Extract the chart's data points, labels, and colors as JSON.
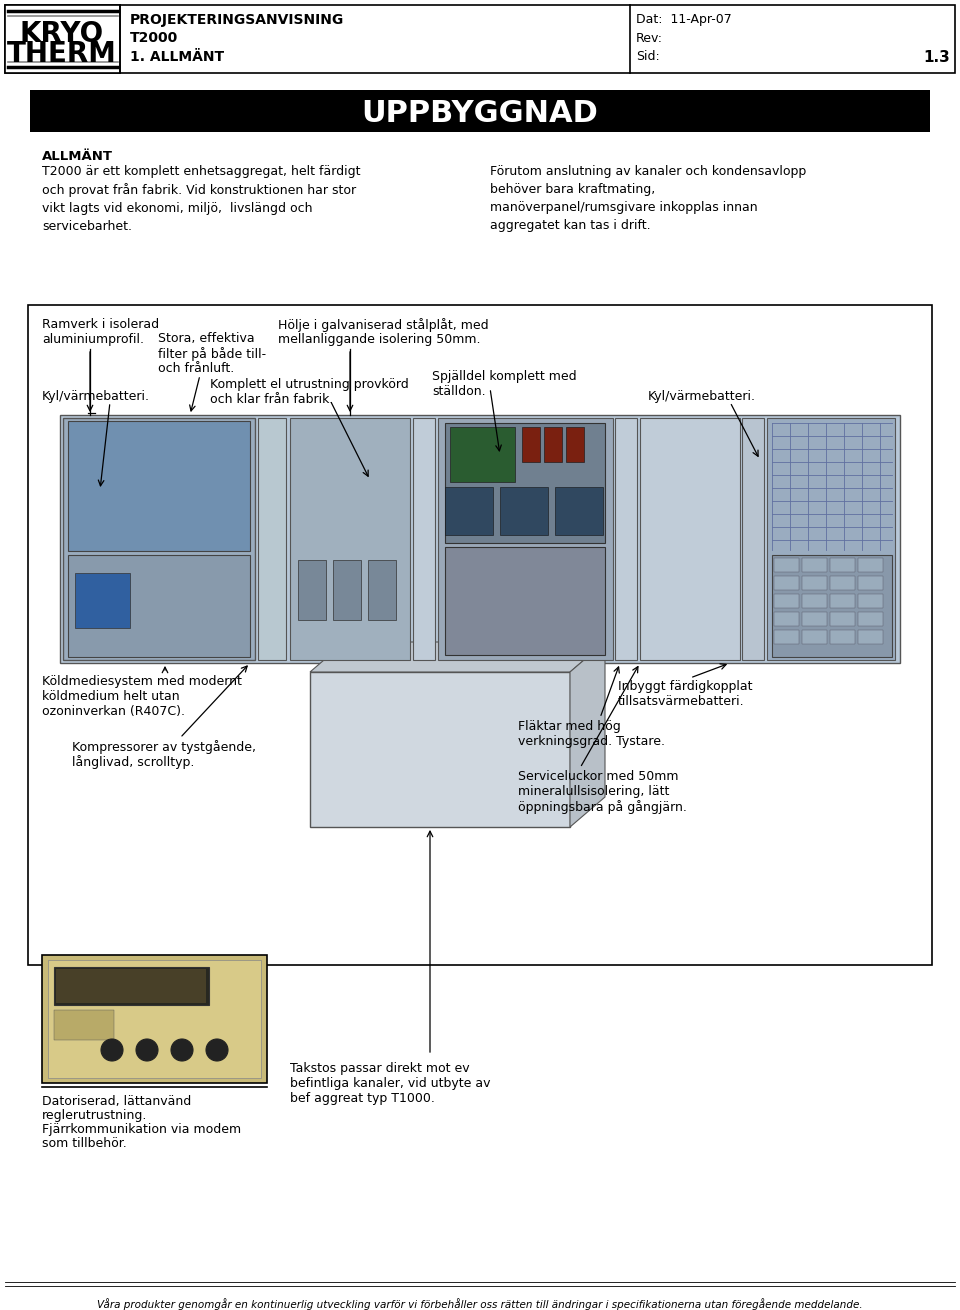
{
  "page_width": 9.6,
  "page_height": 13.1,
  "bg_color": "#ffffff",
  "header": {
    "logo_text_line1": "KRYO",
    "logo_text_line2": "THERM",
    "title_line1": "PROJEKTERINGSANVISNING",
    "title_line2": "T2000",
    "title_line3": "1. ALLMÄNT",
    "date_label": "Dat:",
    "date_value": "11-Apr-07",
    "rev_label": "Rev:",
    "rev_value": "",
    "sid_label": "Sid:",
    "sid_value": "1.3"
  },
  "section_title": "UPPBYGGNAD",
  "allmant_heading": "ALLMÄNT",
  "allmant_text_left": "T2000 är ett komplett enhetsaggregat, helt färdigt\noch provat från fabrik. Vid konstruktionen har stor\nvikt lagts vid ekonomi, miljö,  livslängd och\nservicebarhet.",
  "allmant_text_right": "Förutom anslutning av kanaler och kondensavlopp\nbehöver bara kraftmating,\nmanöverpanel/rumsgivare inkopplas innan\naggregatet kan tas i drift.",
  "diagram_labels": {
    "top_left1": "Ramverk i isolerad",
    "top_left2": "aluminiumprofil.",
    "top_mid1": "Stora, effektiva",
    "top_mid2": "filter på både till-",
    "top_mid3": "och frånluft.",
    "top_right1": "Hölje i galvaniserad stålplåt, med",
    "top_right2": "mellanliggande isolering 50mm.",
    "mid_left1": "Kyl/värmebatteri.",
    "mid_mid1": "Komplett el utrustning provkörd",
    "mid_mid2": "och klar från fabrik.",
    "mid_right1": "Spjälldel komplett med",
    "mid_right2": "ställdon.",
    "mid_far_right": "Kyl/värmebatteri.",
    "bot_left1": "Köldmediesystem med modernt",
    "bot_left2": "köldmedium helt utan",
    "bot_left3": "ozoninverkan (R407C).",
    "bot_mid_left1": "Kompressorer av tystgående,",
    "bot_mid_left2": "långlivad, scrolltyp.",
    "bot_right1": "Inbyggt färdigkopplat",
    "bot_right2": "tillsatsvärmebatteri.",
    "bot_right3": "Fläktar med hög",
    "bot_right4": "verkningsgrad. Tystare.",
    "bot_right5": "Serviceluckor med 50mm",
    "bot_right6": "mineralullsisolering, lätt",
    "bot_right7": "öppningsbara på gångjärn.",
    "takstos1": "Takstos passar direkt mot ev",
    "takstos2": "befintliga kanaler, vid utbyte av",
    "takstos3": "bef aggreat typ T1000.",
    "dator1": "Datoriserad, lättanvänd",
    "dator2": "reglerutrustning.",
    "dator3": "Fjärrkommunikation via modem",
    "dator4": "som tillbehör."
  },
  "footer_text": "Våra produkter genomgår en kontinuerlig utveckling varför vi förbehåller oss rätten till ändringar i specifikationerna utan föregående meddelande."
}
